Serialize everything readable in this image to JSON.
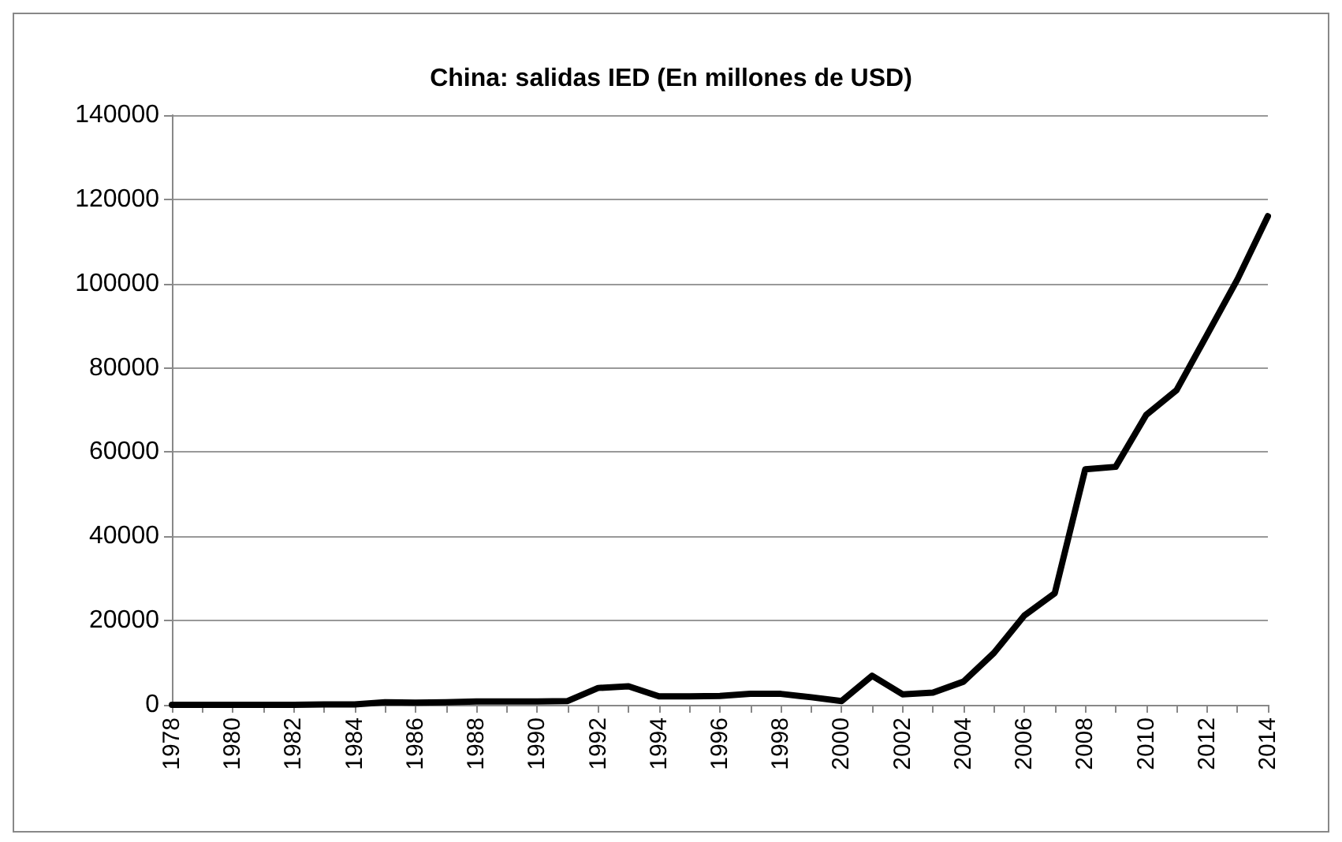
{
  "chart_data": {
    "type": "line",
    "title": "China: salidas IED (En millones de USD)",
    "categories": [
      "1978",
      null,
      "1980",
      null,
      "1982",
      null,
      "1984",
      null,
      "1986",
      null,
      "1988",
      null,
      "1990",
      null,
      "1992",
      null,
      "1994",
      null,
      "1996",
      null,
      "1998",
      null,
      "2000",
      null,
      "2002",
      null,
      "2004",
      null,
      "2006",
      null,
      "2008",
      null,
      "2010",
      null,
      "2012",
      null,
      "2014"
    ],
    "series": [
      {
        "color": "#000000",
        "values": [
          0,
          0,
          0,
          0,
          0,
          100,
          100,
          600,
          500,
          600,
          800,
          800,
          800,
          900,
          4000,
          4400,
          2000,
          2000,
          2100,
          2600,
          2600,
          1800,
          900,
          6900,
          2500,
          2900,
          5500,
          12300,
          21200,
          26500,
          55900,
          56500,
          68800,
          74700,
          87800,
          101000,
          116000
        ]
      }
    ],
    "ylim": [
      0,
      140000
    ],
    "yticks": [
      0,
      20000,
      40000,
      60000,
      80000,
      100000,
      120000,
      140000
    ],
    "grid": "y",
    "marker": "none",
    "line_style": "solid"
  }
}
